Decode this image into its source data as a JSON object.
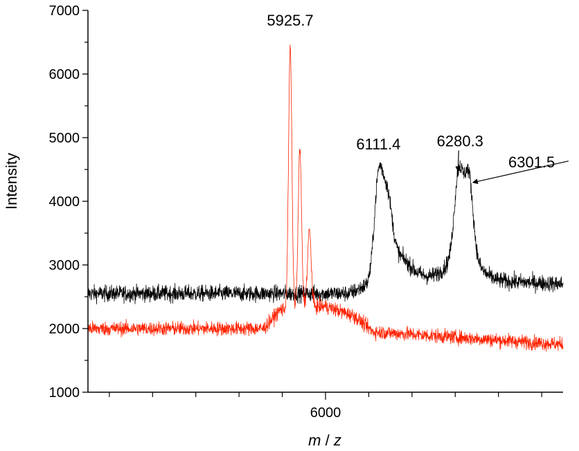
{
  "chart_data": {
    "type": "line",
    "title": "",
    "xlabel_italic_parts": [
      "m",
      " / ",
      "z"
    ],
    "xlabel": "m / z",
    "ylabel": "Intensity",
    "xlim": [
      5500,
      6500
    ],
    "ylim": [
      1000,
      7000
    ],
    "x_tick_labels": [
      {
        "value": 6000,
        "label": "6000"
      }
    ],
    "x_minor_tick_step": 91,
    "y_ticks": [
      1000,
      2000,
      3000,
      4000,
      5000,
      6000,
      7000
    ],
    "y_tick_labels": [
      "1000",
      "2000",
      "3000",
      "4000",
      "5000",
      "6000",
      "7000"
    ],
    "grid": false,
    "legend": "none",
    "series": [
      {
        "name": "black trace",
        "color": "#000000",
        "baseline": [
          [
            5500,
            2550
          ],
          [
            6050,
            2550
          ],
          [
            6080,
            2650
          ],
          [
            6200,
            2800
          ],
          [
            6350,
            2750
          ],
          [
            6500,
            2700
          ]
        ],
        "noise": 230,
        "peaks": [
          {
            "x": 6111.4,
            "height": 1500,
            "width": 9
          },
          {
            "x": 6130,
            "height": 1050,
            "width": 10
          },
          {
            "x": 6150,
            "height": 400,
            "width": 25
          },
          {
            "x": 6280.3,
            "height": 1300,
            "width": 9
          },
          {
            "x": 6301.5,
            "height": 1250,
            "width": 9
          },
          {
            "x": 6290,
            "height": 400,
            "width": 30
          }
        ]
      },
      {
        "name": "red trace",
        "color": "#ff2200",
        "baseline": [
          [
            5500,
            2000
          ],
          [
            5870,
            2000
          ],
          [
            5905,
            2300
          ],
          [
            6000,
            2350
          ],
          [
            6060,
            2200
          ],
          [
            6100,
            1950
          ],
          [
            6300,
            1850
          ],
          [
            6500,
            1750
          ]
        ],
        "noise": 200,
        "peaks": [
          {
            "x": 5925.7,
            "height": 4100,
            "width": 3.5
          },
          {
            "x": 5946,
            "height": 2500,
            "width": 3.5
          },
          {
            "x": 5966,
            "height": 1200,
            "width": 4
          }
        ]
      }
    ],
    "annotations": [
      {
        "label": "5925.7",
        "x": 5925.7,
        "y": 6600,
        "arrow": false
      },
      {
        "label": "6111.4",
        "x": 6111.4,
        "y": 4650,
        "arrow": false
      },
      {
        "label": "6280.3",
        "x": 6280.3,
        "y": 4450,
        "arrow": true
      },
      {
        "label": "6301.5",
        "x": 6301.5,
        "y": 4350,
        "arrow": true
      }
    ]
  }
}
